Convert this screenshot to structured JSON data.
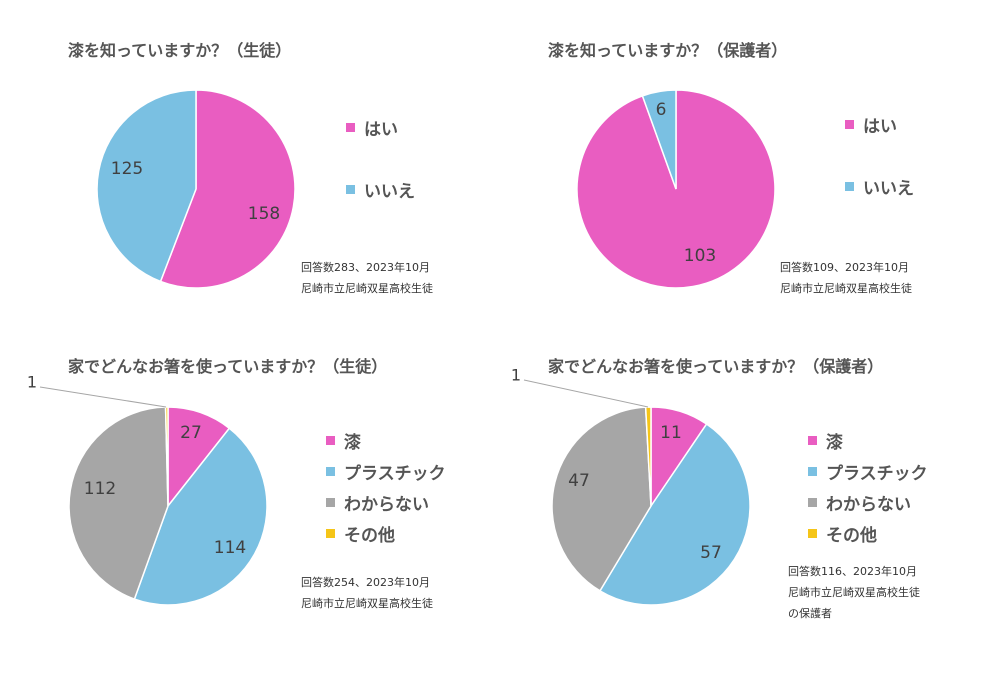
{
  "colors": {
    "pink": "#E95DC1",
    "blue": "#7AC0E2",
    "gray": "#A6A6A6",
    "yellow": "#F5C518"
  },
  "chart_data": [
    {
      "type": "pie",
      "title": "漆を知っていますか？（生徒）",
      "categories": [
        "はい",
        "いいえ"
      ],
      "values": [
        158,
        125
      ],
      "data_labels": [
        "158",
        "125"
      ],
      "legend_position": "right",
      "notes": [
        "回答数283、2023年10月",
        "尼崎市立尼崎双星高校生徒"
      ]
    },
    {
      "type": "pie",
      "title": "漆を知っていますか？（保護者）",
      "categories": [
        "はい",
        "いいえ"
      ],
      "values": [
        103,
        6
      ],
      "data_labels": [
        "103",
        "6"
      ],
      "legend_position": "right",
      "notes": [
        "回答数109、2023年10月",
        "尼崎市立尼崎双星高校生徒"
      ]
    },
    {
      "type": "pie",
      "title": "家でどんなお箸を使っていますか？（生徒）",
      "categories": [
        "漆",
        "プラスチック",
        "わからない",
        "その他"
      ],
      "values": [
        27,
        114,
        112,
        1
      ],
      "data_labels": [
        "27",
        "114",
        "112",
        "1"
      ],
      "legend_position": "right",
      "notes": [
        "回答数254、2023年10月",
        "尼崎市立尼崎双星高校生徒"
      ]
    },
    {
      "type": "pie",
      "title": "家でどんなお箸を使っていますか？（保護者）",
      "categories": [
        "漆",
        "プラスチック",
        "わからない",
        "その他"
      ],
      "values": [
        11,
        57,
        47,
        1
      ],
      "data_labels": [
        "11",
        "57",
        "47",
        "1"
      ],
      "legend_position": "right",
      "notes": [
        "回答数116、2023年10月",
        "尼崎市立尼崎双星高校生徒",
        "の保護者"
      ]
    }
  ]
}
